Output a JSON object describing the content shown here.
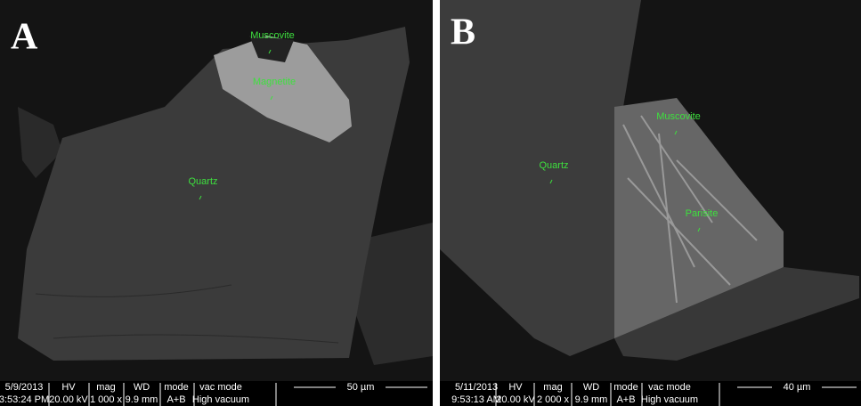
{
  "panels": [
    {
      "label": "A",
      "annotations": [
        "Muscovite",
        "Magnetite",
        "Quartz"
      ],
      "info": {
        "date": "5/9/2013",
        "time": "3:53:24 PM",
        "headers": [
          "HV",
          "mag",
          "WD",
          "mode",
          "vac mode"
        ],
        "values": [
          "20.00 kV",
          "1 000 x",
          "9.9 mm",
          "A+B",
          "High vacuum"
        ],
        "scale": "50 µm"
      }
    },
    {
      "label": "B",
      "annotations": [
        "Quartz",
        "Muscovite",
        "Parisite"
      ],
      "info": {
        "date": "5/11/2013",
        "time": "9:53:13 AM",
        "headers": [
          "HV",
          "mag",
          "WD",
          "mode",
          "vac mode"
        ],
        "values": [
          "20.00 kV",
          "2 000 x",
          "9.9 mm",
          "A+B",
          "High vacuum"
        ],
        "scale": "40 µm"
      }
    }
  ]
}
